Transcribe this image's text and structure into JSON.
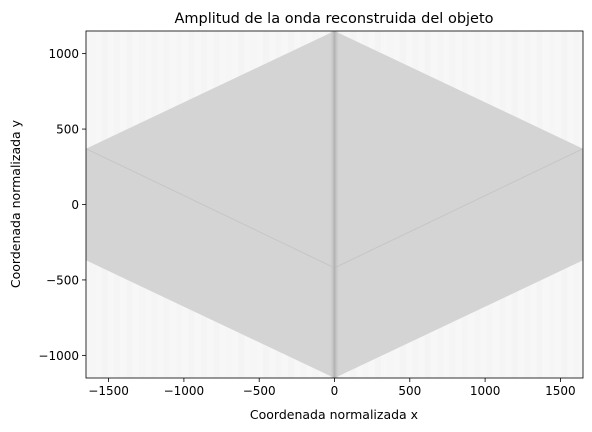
{
  "chart_data": {
    "type": "heatmap",
    "title": "Amplitud de la onda reconstruida del objeto",
    "xlabel": "Coordenada normalizada x",
    "ylabel": "Coordenada normalizada y",
    "xlim": [
      -1650,
      1650
    ],
    "ylim": [
      -1150,
      1150
    ],
    "xticks": [
      -1500,
      -1000,
      -500,
      0,
      500,
      1000,
      1500
    ],
    "yticks": [
      -1000,
      -500,
      0,
      500,
      1000
    ],
    "xtick_labels": [
      "−1500",
      "−1000",
      "−500",
      "0",
      "500",
      "1000",
      "1500"
    ],
    "ytick_labels": [
      "−1000",
      "−500",
      "0",
      "500",
      "1000"
    ],
    "grid": false,
    "colormap": "gray_r",
    "colors": {
      "background": "#f7f7f7",
      "hexagon_fill": "#d4d4d4",
      "center_line": "#b0b0b0",
      "inner_line": "#c6c6c6"
    },
    "hexagon_vertices": [
      [
        0,
        1150
      ],
      [
        1650,
        370
      ],
      [
        1650,
        -370
      ],
      [
        0,
        -1150
      ],
      [
        -1650,
        -370
      ],
      [
        -1650,
        370
      ]
    ],
    "inner_lines": [
      [
        [
          -1650,
          370
        ],
        [
          0,
          -420
        ]
      ],
      [
        [
          0,
          -420
        ],
        [
          1650,
          370
        ]
      ]
    ],
    "center_stripe_x": 0
  }
}
